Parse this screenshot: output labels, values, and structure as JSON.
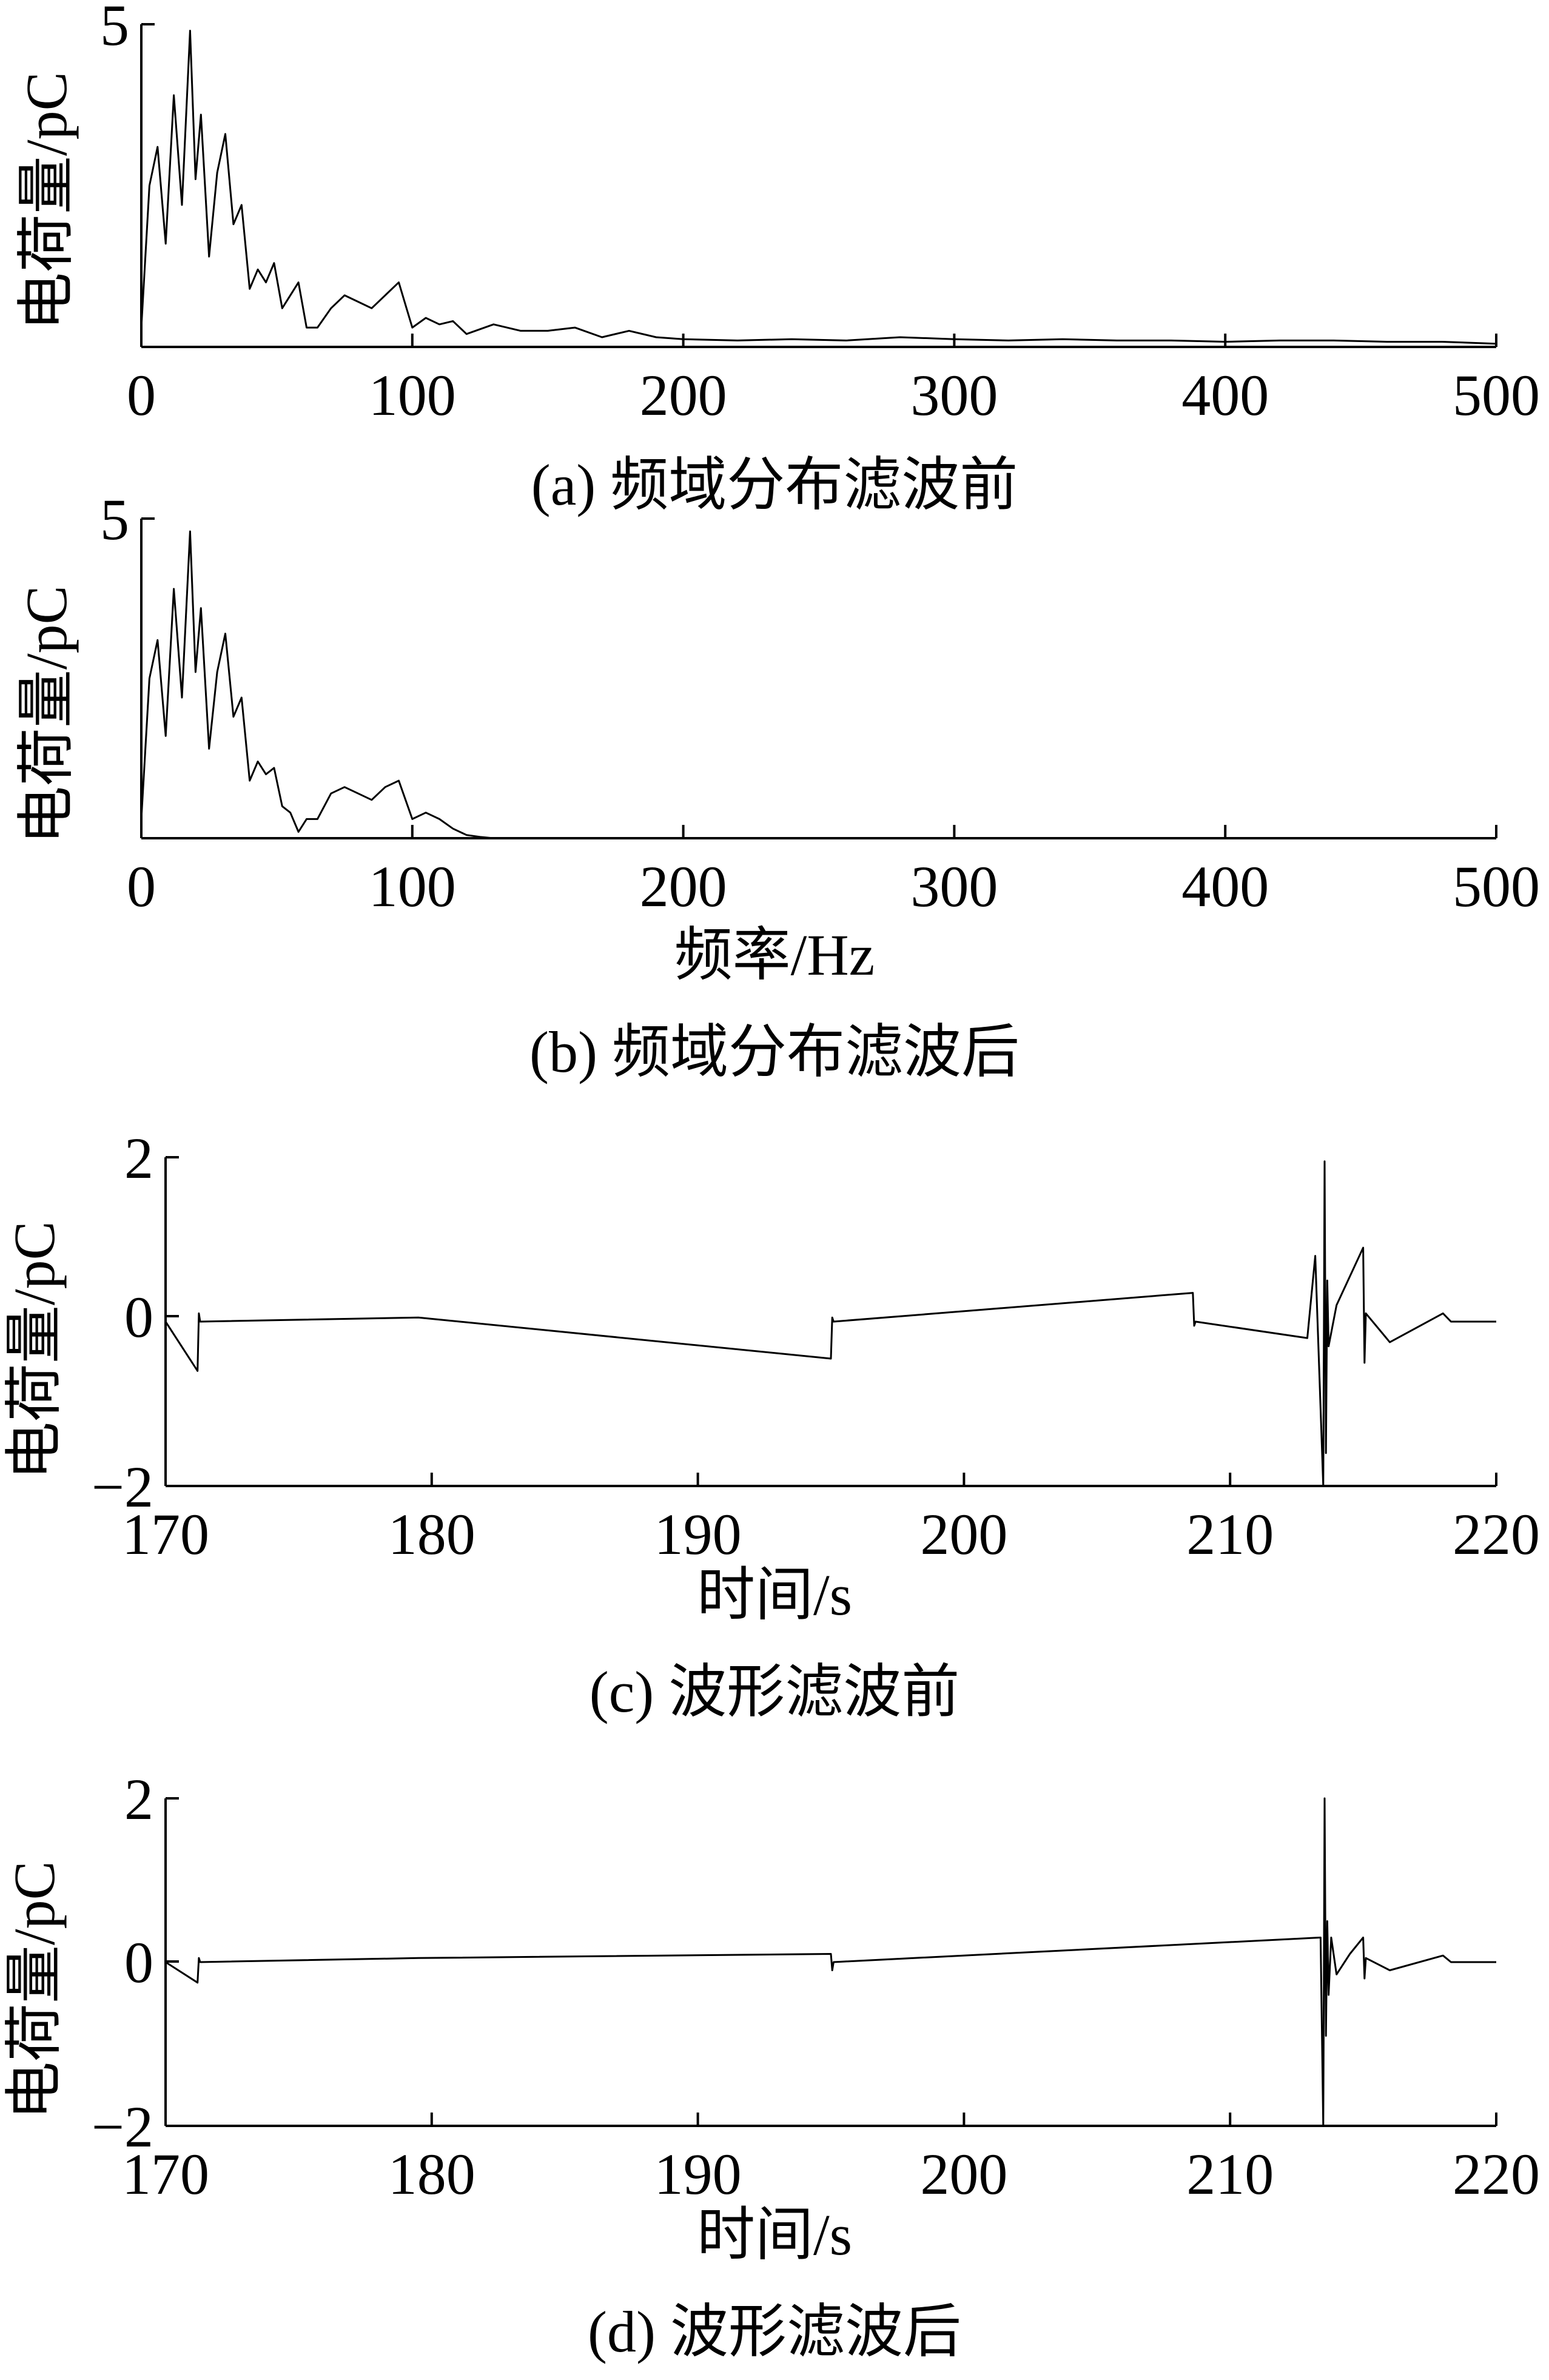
{
  "chart_data": [
    {
      "type": "line",
      "panel": "a",
      "caption": "(a)  频域分布滤波前",
      "xlabel": "",
      "ylabel": "电荷量/pC",
      "xlim": [
        0,
        500
      ],
      "ylim": [
        0,
        5
      ],
      "xticks": [
        "0",
        "100",
        "200",
        "300",
        "400",
        "500"
      ],
      "yticks": [
        "5"
      ],
      "series": [
        {
          "x": [
            0,
            3,
            6,
            9,
            12,
            15,
            18,
            20,
            22,
            25,
            28,
            31,
            34,
            37,
            40,
            43,
            46,
            49,
            52,
            55,
            58,
            61,
            65,
            70,
            75,
            80,
            85,
            90,
            95,
            100,
            105,
            110,
            115,
            120,
            130,
            140,
            150,
            160,
            170,
            180,
            190,
            200,
            220,
            240,
            260,
            280,
            300,
            320,
            340,
            360,
            380,
            400,
            420,
            440,
            460,
            480,
            500
          ],
          "y": [
            0.3,
            2.5,
            3.1,
            1.6,
            3.9,
            2.2,
            4.9,
            2.6,
            3.6,
            1.4,
            2.7,
            3.3,
            1.9,
            2.2,
            0.9,
            1.2,
            1.0,
            1.3,
            0.6,
            0.8,
            1.0,
            0.3,
            0.3,
            0.6,
            0.8,
            0.7,
            0.6,
            0.8,
            1.0,
            0.3,
            0.45,
            0.35,
            0.4,
            0.2,
            0.35,
            0.25,
            0.25,
            0.3,
            0.15,
            0.25,
            0.15,
            0.12,
            0.1,
            0.12,
            0.1,
            0.15,
            0.12,
            0.1,
            0.12,
            0.1,
            0.1,
            0.08,
            0.1,
            0.1,
            0.08,
            0.08,
            0.05
          ]
        }
      ]
    },
    {
      "type": "line",
      "panel": "b",
      "caption": "(b)  频域分布滤波后",
      "xlabel": "频率/Hz",
      "ylabel": "电荷量/pC",
      "xlim": [
        0,
        500
      ],
      "ylim": [
        0,
        5
      ],
      "xticks": [
        "0",
        "100",
        "200",
        "300",
        "400",
        "500"
      ],
      "yticks": [
        "5"
      ],
      "series": [
        {
          "x": [
            0,
            3,
            6,
            9,
            12,
            15,
            18,
            20,
            22,
            25,
            28,
            31,
            34,
            37,
            40,
            43,
            46,
            49,
            52,
            55,
            58,
            61,
            65,
            70,
            75,
            80,
            85,
            90,
            95,
            100,
            105,
            110,
            115,
            120,
            125,
            130,
            500
          ],
          "y": [
            0.3,
            2.5,
            3.1,
            1.6,
            3.9,
            2.2,
            4.8,
            2.6,
            3.6,
            1.4,
            2.6,
            3.2,
            1.9,
            2.2,
            0.9,
            1.2,
            1.0,
            1.1,
            0.5,
            0.4,
            0.1,
            0.3,
            0.3,
            0.7,
            0.8,
            0.7,
            0.6,
            0.8,
            0.9,
            0.3,
            0.4,
            0.3,
            0.15,
            0.05,
            0.02,
            0.0,
            0.0
          ]
        }
      ]
    },
    {
      "type": "line",
      "panel": "c",
      "caption": "(c)  波形滤波前",
      "xlabel": "时间/s",
      "ylabel": "电荷量/pC",
      "xlim": [
        170,
        220
      ],
      "ylim": [
        -2,
        2
      ],
      "xticks": [
        "170",
        "180",
        "190",
        "200",
        "210",
        "220"
      ],
      "yticks": [
        "2",
        "0",
        "−2"
      ],
      "series": [
        {
          "x": [
            170,
            171.2,
            171.25,
            171.3,
            179.5,
            195.0,
            195.05,
            195.1,
            208.6,
            208.65,
            208.7,
            212.9,
            213.2,
            213.5,
            213.55,
            213.6,
            213.65,
            213.7,
            214.0,
            215.0,
            215.05,
            215.1,
            216.0,
            218.0,
            218.3,
            220
          ],
          "y": [
            0,
            -0.6,
            0.1,
            0,
            0.05,
            -0.45,
            0.05,
            0,
            0.35,
            -0.05,
            0,
            -0.2,
            0.8,
            -2.0,
            1.95,
            -1.6,
            0.5,
            -0.3,
            0.2,
            0.9,
            -0.5,
            0.1,
            -0.25,
            0.1,
            0.0,
            0
          ]
        }
      ]
    },
    {
      "type": "line",
      "panel": "d",
      "caption": "(d)  波形滤波后",
      "xlabel": "时间/s",
      "ylabel": "电荷量/pC",
      "xlim": [
        170,
        220
      ],
      "ylim": [
        -2,
        2
      ],
      "xticks": [
        "170",
        "180",
        "190",
        "200",
        "210",
        "220"
      ],
      "yticks": [
        "2",
        "0",
        "−2"
      ],
      "series": [
        {
          "x": [
            170,
            171.2,
            171.25,
            171.3,
            179.5,
            195.0,
            195.05,
            195.1,
            213.4,
            213.5,
            213.55,
            213.6,
            213.65,
            213.7,
            213.8,
            214.0,
            214.5,
            215.0,
            215.05,
            215.1,
            216.0,
            218.0,
            218.3,
            220
          ],
          "y": [
            0,
            -0.25,
            0.05,
            0,
            0.05,
            0.1,
            -0.1,
            0,
            0.3,
            -2.0,
            2.0,
            -0.9,
            0.5,
            -0.4,
            0.3,
            -0.15,
            0.1,
            0.3,
            -0.2,
            0.05,
            -0.1,
            0.08,
            0.0,
            0
          ]
        }
      ]
    }
  ]
}
